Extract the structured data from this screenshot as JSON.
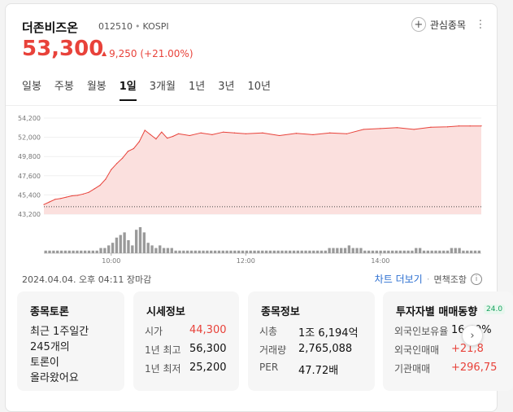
{
  "stock": {
    "name": "더존비즈온",
    "code": "012510",
    "market": "KOSPI",
    "price": "53,300",
    "change_amount": "9,250",
    "change_pct": "(+21.00%)",
    "favorite_label": "관심종목"
  },
  "tabs": [
    "일봉",
    "주봉",
    "월봉",
    "1일",
    "3개월",
    "1년",
    "3년",
    "10년"
  ],
  "active_tab": "1일",
  "colors": {
    "up": "#e8423a",
    "line": "#e8423a",
    "fill": "#fbe0de",
    "volume": "#9a9a9a",
    "link": "#2c6fd1"
  },
  "chart_data": {
    "type": "area",
    "x_ticks": [
      "10:00",
      "12:00",
      "14:00"
    ],
    "y_ticks": [
      "54,200",
      "52,000",
      "49,800",
      "47,600",
      "45,400",
      "43,200"
    ],
    "ylim": [
      43200,
      54200
    ],
    "baseline": 44050,
    "x_range": [
      "09:00",
      "15:30"
    ],
    "series": [
      {
        "values": [
          [
            "09:00",
            44300
          ],
          [
            "09:05",
            44600
          ],
          [
            "09:10",
            44900
          ],
          [
            "09:15",
            45000
          ],
          [
            "09:20",
            45150
          ],
          [
            "09:25",
            45300
          ],
          [
            "09:30",
            45350
          ],
          [
            "09:35",
            45500
          ],
          [
            "09:40",
            45700
          ],
          [
            "09:45",
            46100
          ],
          [
            "09:50",
            46500
          ],
          [
            "09:55",
            47200
          ],
          [
            "10:00",
            48300
          ],
          [
            "10:05",
            49000
          ],
          [
            "10:10",
            49600
          ],
          [
            "10:15",
            50400
          ],
          [
            "10:20",
            50700
          ],
          [
            "10:25",
            51500
          ],
          [
            "10:30",
            52800
          ],
          [
            "10:35",
            52300
          ],
          [
            "10:40",
            51800
          ],
          [
            "10:45",
            52600
          ],
          [
            "10:50",
            51900
          ],
          [
            "10:55",
            52100
          ],
          [
            "11:00",
            52400
          ],
          [
            "11:10",
            52200
          ],
          [
            "11:20",
            52500
          ],
          [
            "11:30",
            52300
          ],
          [
            "11:40",
            52600
          ],
          [
            "11:50",
            52500
          ],
          [
            "12:00",
            52400
          ],
          [
            "12:15",
            52500
          ],
          [
            "12:30",
            52200
          ],
          [
            "12:45",
            52450
          ],
          [
            "13:00",
            52300
          ],
          [
            "13:15",
            52500
          ],
          [
            "13:30",
            52400
          ],
          [
            "13:45",
            52900
          ],
          [
            "14:00",
            53000
          ],
          [
            "14:15",
            53100
          ],
          [
            "14:30",
            52900
          ],
          [
            "14:45",
            53150
          ],
          [
            "15:00",
            53200
          ],
          [
            "15:10",
            53300
          ],
          [
            "15:20",
            53300
          ],
          [
            "15:30",
            53300
          ]
        ]
      }
    ],
    "volume": [
      1,
      1,
      1,
      1,
      1,
      1,
      1,
      1,
      1,
      1,
      1,
      1,
      1,
      1,
      2,
      2,
      3,
      4,
      6,
      7,
      8,
      5,
      3,
      9,
      10,
      8,
      4,
      3,
      2,
      3,
      2,
      2,
      2,
      1,
      1,
      1,
      1,
      1,
      1,
      1,
      1,
      1,
      1,
      1,
      1,
      1,
      1,
      1,
      1,
      1,
      1,
      1,
      1,
      1,
      1,
      1,
      1,
      1,
      1,
      1,
      1,
      1,
      1,
      1,
      1,
      1,
      1,
      1,
      1,
      1,
      1,
      1,
      2,
      2,
      2,
      2,
      2,
      3,
      2,
      2,
      2,
      1,
      1,
      1,
      1,
      1,
      1,
      1,
      1,
      1,
      1,
      1,
      1,
      1,
      2,
      2,
      1,
      1,
      1,
      1,
      1,
      1,
      1,
      2,
      2,
      2,
      1,
      1,
      1,
      1,
      1
    ]
  },
  "timestamp": "2024.04.04. 오후 04:11 장마감",
  "links": {
    "chart_more": "차트 더보기",
    "disclaimer": "면책조항",
    "info_icon": "i"
  },
  "panels": {
    "discussion": {
      "title": "종목토론",
      "lines": [
        "최근 1주일간",
        "245개의",
        "토론이",
        "올라왔어요"
      ]
    },
    "market": {
      "title": "시세정보",
      "rows": [
        {
          "k": "시가",
          "v": "44,300"
        },
        {
          "k": "1년 최고",
          "v": "56,300"
        },
        {
          "k": "1년 최저",
          "v": "25,200"
        }
      ]
    },
    "info": {
      "title": "종목정보",
      "rows": [
        {
          "k": "시총",
          "v": "1조 6,194억"
        },
        {
          "k": "거래량",
          "v": "2,765,088"
        },
        {
          "k": "PER",
          "v": "47.72배"
        }
      ]
    },
    "investors": {
      "title": "투자자별 매매동향",
      "badge": "24.0",
      "rows": [
        {
          "k": "외국인보유율",
          "v": "16.40%"
        },
        {
          "k": "외국인매매",
          "v": "+21,8"
        },
        {
          "k": "기관매매",
          "v": "+296,75"
        }
      ]
    }
  }
}
